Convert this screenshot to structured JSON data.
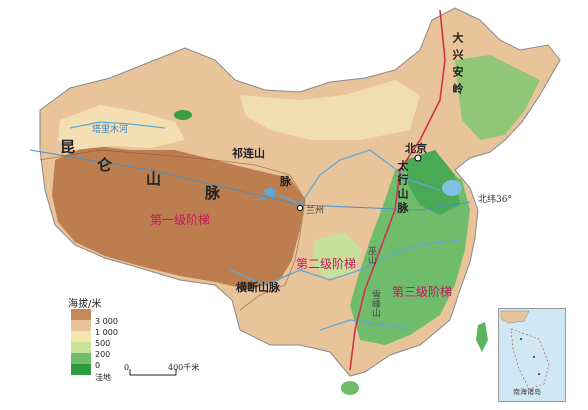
{
  "map": {
    "mountains": {
      "kunlun_1": "昆",
      "kunlun_2": "仑",
      "kunlun_3": "山",
      "kunlun_4": "脉",
      "qilian": "祁连山",
      "qilian_2": "脉",
      "daxinganling": "大兴安岭",
      "taihang": "太行山脉",
      "hengduan": "横断山脉",
      "wushan": "巫山",
      "xuefeng": "雪峰山"
    },
    "places": {
      "beijing": "北京",
      "lanzhou": "兰州"
    },
    "latitude_label": "北纬36°",
    "steps": {
      "first": "第一级阶梯",
      "second": "第二级阶梯",
      "third": "第三级阶梯"
    },
    "river_label": "塔里木河"
  },
  "legend": {
    "title": "海拔/米",
    "levels": [
      {
        "label": "3 000",
        "color": "#c8895a"
      },
      {
        "label": "1 000",
        "color": "#e7c49a"
      },
      {
        "label": "500",
        "color": "#f3e6b0"
      },
      {
        "label": "200",
        "color": "#c9e29a"
      },
      {
        "label": "0",
        "color": "#6fbf6a"
      },
      {
        "label": "洼地",
        "color": "#2e9a3e"
      }
    ]
  },
  "scale": {
    "zero": "0",
    "distance": "400千米"
  },
  "inset": {
    "label": "南海诸岛"
  },
  "colors": {
    "water": "#6ab7dd",
    "divider_line": "#d0324a",
    "plateau": "#b57346",
    "highland": "#d9a774",
    "lowland": "#a8d27f",
    "plain": "#5bb35d"
  }
}
